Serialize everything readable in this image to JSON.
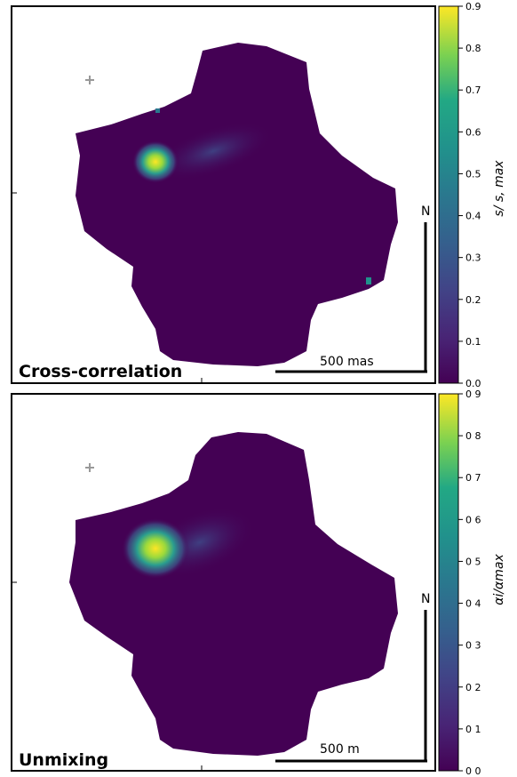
{
  "chart_data": [
    {
      "type": "heatmap",
      "title": "Cross-correlation",
      "colorbar": {
        "label": "s/ s, max",
        "range": [
          0,
          0.9
        ],
        "ticks": [
          "0.0",
          "0.1",
          "0.2",
          "0.3",
          "0.4",
          "0.5",
          "0.6",
          "0.7",
          "0.8",
          "0.9"
        ],
        "colormap": "viridis"
      },
      "compass": "N",
      "scale_bar": "500 mas",
      "peak_value": 0.9,
      "background_value": 0.02
    },
    {
      "type": "heatmap",
      "title": "Unmixing",
      "colorbar": {
        "label": "αi/αmax",
        "range": [
          0,
          0.9
        ],
        "ticks": [
          "0 0",
          "0 1",
          "0 2",
          "0 3",
          "0 4",
          "0 5",
          "0 6",
          "0 7",
          "0 8",
          "0 9"
        ],
        "colormap": "viridis"
      },
      "compass": "N",
      "scale_bar": "500 m",
      "peak_value": 0.9,
      "background_value": 0.02
    }
  ],
  "colors": {
    "viridis_low": "#440154",
    "viridis_mid": "#21918c",
    "viridis_high": "#fde725",
    "background": "#ffffff",
    "marker": "#999999"
  }
}
